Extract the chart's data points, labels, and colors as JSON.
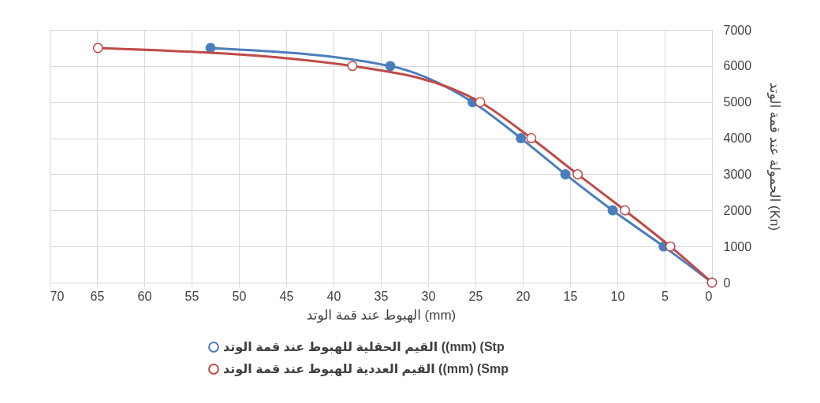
{
  "chart_data": {
    "type": "line",
    "xlabel": "الهبوط عند قمة الوتد (mm)",
    "ylabel": "الحمولة عند قمة الوتد (Kn)",
    "xlim": [
      70,
      0
    ],
    "xticks": [
      70,
      65,
      60,
      55,
      50,
      45,
      40,
      35,
      30,
      25,
      20,
      15,
      10,
      5,
      0
    ],
    "ylim": [
      0,
      7000
    ],
    "yticks": [
      0,
      1000,
      2000,
      3000,
      4000,
      5000,
      6000,
      7000
    ],
    "grid": true,
    "legend": "bottom",
    "marker": "circle",
    "series": [
      {
        "name": "القيم  الحقلية للهبوط عند قمة الوتد ((mm) (Stp",
        "color": "#4a7ebb",
        "x": [
          53,
          34,
          25.3,
          20.2,
          15.5,
          10.5,
          5.1,
          0
        ],
        "values": [
          6500,
          6000,
          5000,
          4000,
          3000,
          2000,
          1000,
          0
        ]
      },
      {
        "name": "القيم العددية للهبوط عند قمة الوتد ((mm) (Smp",
        "color": "#be4b48",
        "x": [
          64.9,
          38,
          24.5,
          19.1,
          14.2,
          9.2,
          4.4,
          0
        ],
        "values": [
          6500,
          6000,
          5000,
          4000,
          3000,
          2000,
          1000,
          0
        ]
      }
    ]
  }
}
